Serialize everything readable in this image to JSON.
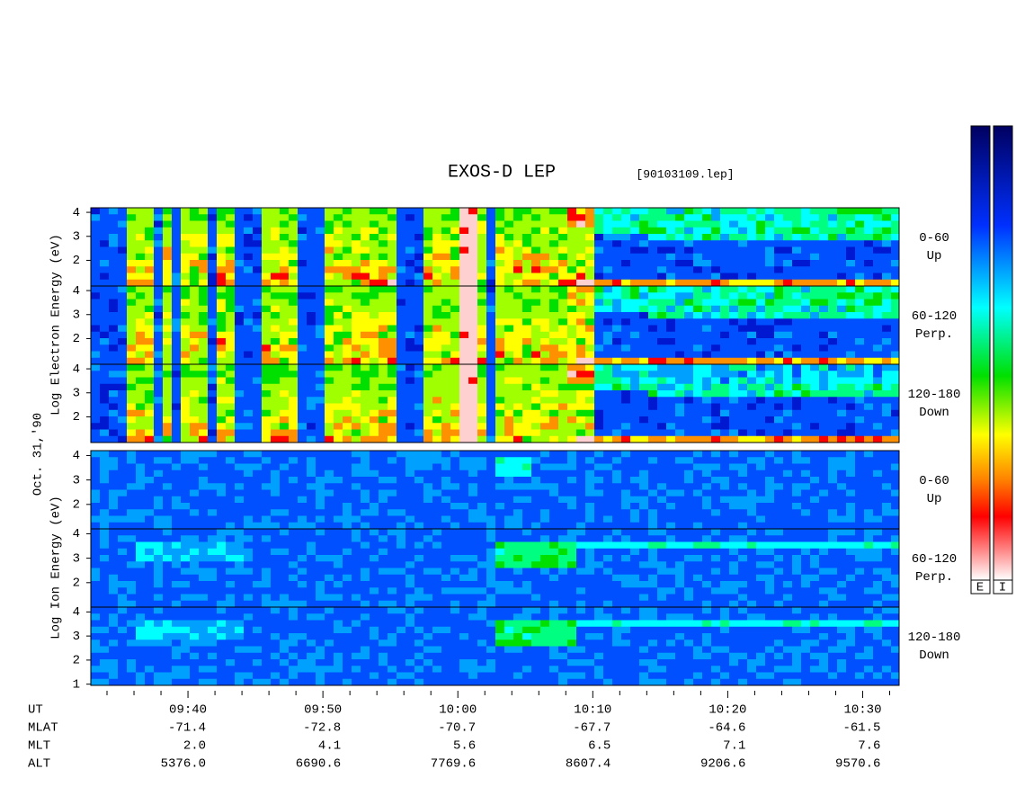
{
  "title": "EXOS-D LEP",
  "file": "[90103109.lep]",
  "date": "Oct. 31,'90",
  "x_axis": {
    "label": "UT",
    "xlim": [
      572.8,
      632.7
    ],
    "xticks": [
      {
        "value": 580,
        "label": "09:40"
      },
      {
        "value": 590,
        "label": "09:50"
      },
      {
        "value": 600,
        "label": "10:00"
      },
      {
        "value": 610,
        "label": "10:10"
      },
      {
        "value": 620,
        "label": "10:20"
      },
      {
        "value": 630,
        "label": "10:30"
      }
    ],
    "minor_ticks": [
      574,
      576,
      578,
      582,
      584,
      586,
      588,
      592,
      594,
      596,
      598,
      602,
      604,
      606,
      608,
      612,
      614,
      616,
      618,
      622,
      624,
      626,
      628,
      632
    ]
  },
  "groups": [
    {
      "y_label": "Log  Electron  Energy (eV)",
      "panels": [
        {
          "channel": [
            "0-60",
            "Up"
          ],
          "ylim": [
            0.93,
            4.19
          ],
          "yticks": [
            2,
            3,
            4
          ]
        },
        {
          "channel": [
            "60-120",
            "Perp."
          ],
          "ylim": [
            0.93,
            4.19
          ],
          "yticks": [
            2,
            3,
            4
          ]
        },
        {
          "channel": [
            "120-180",
            "Down"
          ],
          "ylim": [
            0.93,
            4.19
          ],
          "yticks": [
            2,
            3,
            4
          ]
        }
      ]
    },
    {
      "y_label": "Log  Ion  Energy (eV)",
      "panels": [
        {
          "channel": [
            "0-60",
            "Up"
          ],
          "ylim": [
            1,
            4.2
          ],
          "yticks": [
            2,
            3,
            4
          ]
        },
        {
          "channel": [
            "60-120",
            "Perp."
          ],
          "ylim": [
            1,
            4.2
          ],
          "yticks": [
            2,
            3,
            4
          ]
        },
        {
          "channel": [
            "120-180",
            "Down"
          ],
          "ylim": [
            0.95,
            4.2
          ],
          "yticks": [
            1,
            2,
            3,
            4
          ]
        }
      ]
    }
  ],
  "orbit": {
    "rows": [
      {
        "label": "MLAT",
        "values": [
          "-71.4",
          "-72.8",
          "-70.7",
          "-67.7",
          "-64.6",
          "-61.5"
        ]
      },
      {
        "label": "MLT",
        "values": [
          "2.0",
          "4.1",
          "5.6",
          "6.5",
          "7.1",
          "7.6"
        ]
      },
      {
        "label": "ALT",
        "values": [
          "5376.0",
          "6690.6",
          "7769.6",
          "8607.4",
          "9206.6",
          "9570.6"
        ]
      }
    ]
  },
  "colorbars": [
    "E",
    "I"
  ]
}
